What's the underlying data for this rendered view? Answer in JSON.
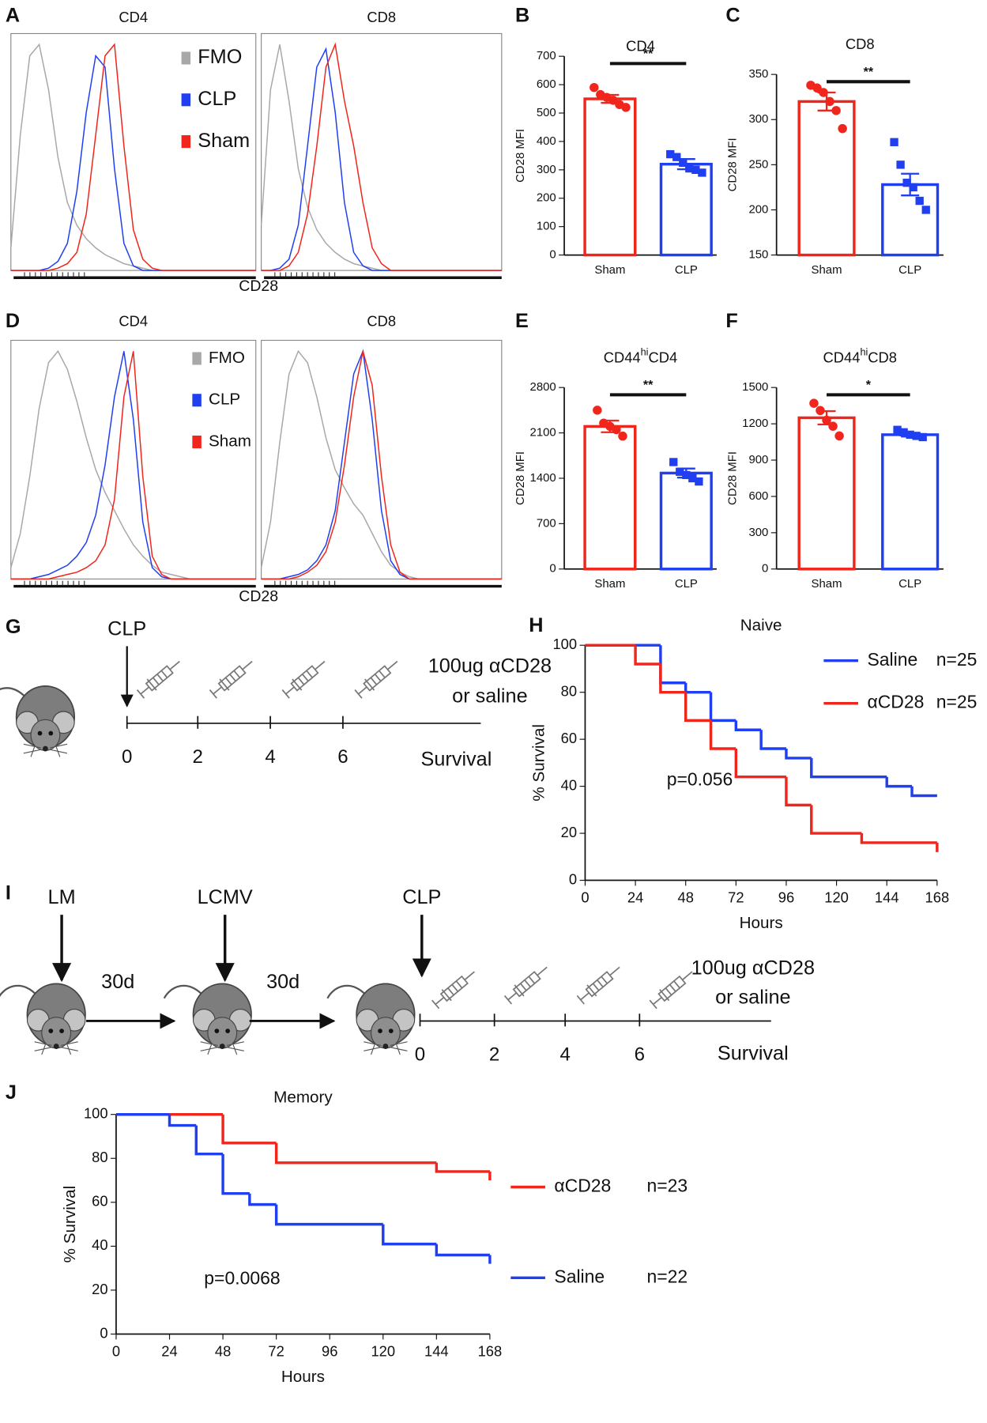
{
  "chart_data": [
    {
      "type": "density",
      "panel": "A",
      "xlabel": "CD28",
      "series": [
        {
          "name": "FMO",
          "color": "#a8a8a8"
        },
        {
          "name": "CLP",
          "color": "#1f3ff0"
        },
        {
          "name": "Sham",
          "color": "#f0251c"
        }
      ],
      "plots": [
        {
          "title": "CD4",
          "values": [
            [
              10,
              60,
              95,
              100,
              80,
              50,
              30,
              20,
              14,
              10,
              7,
              5,
              3,
              2,
              1,
              0,
              0,
              0,
              0,
              0,
              0,
              0,
              0,
              0,
              0,
              0,
              0
            ],
            [
              0,
              0,
              0,
              0,
              1,
              4,
              12,
              35,
              70,
              95,
              90,
              45,
              12,
              2,
              0,
              0,
              0,
              0,
              0,
              0,
              0,
              0,
              0,
              0,
              0,
              0,
              0
            ],
            [
              0,
              0,
              0,
              0,
              0,
              1,
              3,
              8,
              25,
              60,
              95,
              100,
              55,
              18,
              5,
              1,
              0,
              0,
              0,
              0,
              0,
              0,
              0,
              0,
              0,
              0,
              0
            ]
          ]
        },
        {
          "title": "CD8",
          "values": [
            [
              20,
              80,
              100,
              75,
              45,
              28,
              18,
              12,
              8,
              5,
              3,
              2,
              1,
              0,
              0,
              0,
              0,
              0,
              0,
              0,
              0,
              0,
              0,
              0,
              0,
              0,
              0
            ],
            [
              0,
              0,
              1,
              5,
              20,
              55,
              90,
              98,
              70,
              30,
              8,
              2,
              0,
              0,
              0,
              0,
              0,
              0,
              0,
              0,
              0,
              0,
              0,
              0,
              0,
              0,
              0
            ],
            [
              0,
              0,
              0,
              2,
              8,
              25,
              55,
              90,
              100,
              75,
              55,
              30,
              10,
              3,
              0,
              0,
              0,
              0,
              0,
              0,
              0,
              0,
              0,
              0,
              0,
              0,
              0
            ]
          ]
        }
      ]
    },
    {
      "type": "bar",
      "panel": "B",
      "title": "CD4",
      "ylabel": "CD28 MFI",
      "categories": [
        "Sham",
        "CLP"
      ],
      "values": [
        550,
        320
      ],
      "errors": [
        14,
        18
      ],
      "points": [
        [
          590,
          565,
          555,
          545,
          530,
          520
        ],
        [
          355,
          345,
          325,
          305,
          300,
          290
        ]
      ],
      "colors": [
        "#f0251c",
        "#1f3ff0"
      ],
      "markers": [
        "circle",
        "square"
      ],
      "ylim": [
        0,
        700
      ],
      "yticks": [
        0,
        100,
        200,
        300,
        400,
        500,
        600,
        700
      ],
      "significance": "**"
    },
    {
      "type": "bar",
      "panel": "C",
      "title": "CD8",
      "ylabel": "CD28 MFI",
      "categories": [
        "Sham",
        "CLP"
      ],
      "values": [
        320,
        228
      ],
      "errors": [
        10,
        12
      ],
      "points": [
        [
          338,
          335,
          330,
          320,
          310,
          290
        ],
        [
          275,
          250,
          230,
          225,
          210,
          200
        ]
      ],
      "colors": [
        "#f0251c",
        "#1f3ff0"
      ],
      "markers": [
        "circle",
        "square"
      ],
      "ylim": [
        150,
        350
      ],
      "yticks": [
        150,
        200,
        250,
        300,
        350
      ],
      "significance": "**"
    },
    {
      "type": "density",
      "panel": "D",
      "xlabel": "CD28",
      "series": [
        {
          "name": "FMO",
          "color": "#a8a8a8"
        },
        {
          "name": "CLP",
          "color": "#1f3ff0"
        },
        {
          "name": "Sham",
          "color": "#f0251c"
        }
      ],
      "plots": [
        {
          "title": "CD4",
          "values": [
            [
              5,
              20,
              45,
              75,
              95,
              100,
              92,
              78,
              62,
              48,
              38,
              30,
              22,
              15,
              10,
              6,
              3,
              2,
              1,
              0,
              0,
              0,
              0,
              0,
              0,
              0,
              0
            ],
            [
              0,
              0,
              0,
              1,
              2,
              4,
              6,
              10,
              16,
              28,
              50,
              80,
              100,
              70,
              25,
              5,
              1,
              0,
              0,
              0,
              0,
              0,
              0,
              0,
              0,
              0,
              0
            ],
            [
              0,
              0,
              0,
              0,
              0,
              1,
              2,
              3,
              5,
              8,
              15,
              35,
              80,
              100,
              45,
              10,
              2,
              0,
              0,
              0,
              0,
              0,
              0,
              0,
              0,
              0,
              0
            ]
          ]
        },
        {
          "title": "CD8",
          "values": [
            [
              5,
              25,
              60,
              90,
              100,
              95,
              80,
              62,
              48,
              40,
              33,
              28,
              20,
              12,
              6,
              3,
              1,
              0,
              0,
              0,
              0,
              0,
              0,
              0,
              0,
              0,
              0
            ],
            [
              0,
              0,
              0,
              1,
              2,
              4,
              8,
              15,
              30,
              60,
              90,
              100,
              70,
              30,
              8,
              2,
              0,
              0,
              0,
              0,
              0,
              0,
              0,
              0,
              0,
              0,
              0
            ],
            [
              0,
              0,
              0,
              0,
              1,
              3,
              6,
              12,
              25,
              50,
              80,
              100,
              85,
              45,
              15,
              3,
              0,
              0,
              0,
              0,
              0,
              0,
              0,
              0,
              0,
              0,
              0
            ]
          ]
        }
      ]
    },
    {
      "type": "bar",
      "panel": "E",
      "title_parts": [
        "CD44",
        "hi",
        "CD4"
      ],
      "ylabel": "CD28 MFI",
      "categories": [
        "Sham",
        "CLP"
      ],
      "values": [
        2200,
        1480
      ],
      "errors": [
        90,
        70
      ],
      "points": [
        [
          2450,
          2250,
          2200,
          2150,
          2050
        ],
        [
          1650,
          1500,
          1450,
          1400,
          1350
        ]
      ],
      "colors": [
        "#f0251c",
        "#1f3ff0"
      ],
      "markers": [
        "circle",
        "square"
      ],
      "ylim": [
        0,
        2800
      ],
      "yticks": [
        0,
        700,
        1400,
        2100,
        2800
      ],
      "significance": "**"
    },
    {
      "type": "bar",
      "panel": "F",
      "title_parts": [
        "CD44",
        "hi",
        "CD8"
      ],
      "ylabel": "CD28 MFI",
      "categories": [
        "Sham",
        "CLP"
      ],
      "values": [
        1250,
        1110
      ],
      "errors": [
        55,
        15
      ],
      "points": [
        [
          1370,
          1310,
          1230,
          1180,
          1100
        ],
        [
          1150,
          1130,
          1110,
          1100,
          1090
        ]
      ],
      "colors": [
        "#f0251c",
        "#1f3ff0"
      ],
      "markers": [
        "circle",
        "square"
      ],
      "ylim": [
        0,
        1500
      ],
      "yticks": [
        0,
        300,
        600,
        900,
        1200,
        1500
      ],
      "significance": "*"
    },
    {
      "type": "survival",
      "panel": "H",
      "title": "Naive",
      "xlabel": "Hours",
      "ylabel": "% Survival",
      "xlim": [
        0,
        168
      ],
      "xticks": [
        0,
        24,
        48,
        72,
        96,
        120,
        144,
        168
      ],
      "ylim": [
        0,
        100
      ],
      "yticks": [
        0,
        20,
        40,
        60,
        80,
        100
      ],
      "series": [
        {
          "name": "Saline",
          "n": "n=25",
          "color": "#1f3ff0",
          "x": [
            0,
            36,
            48,
            60,
            72,
            84,
            96,
            108,
            144,
            156,
            168
          ],
          "values": [
            100,
            84,
            80,
            68,
            64,
            56,
            52,
            44,
            40,
            36,
            36
          ]
        },
        {
          "name": "αCD28",
          "n": "n=25",
          "color": "#f0251c",
          "x": [
            0,
            24,
            36,
            48,
            60,
            72,
            96,
            108,
            132,
            168
          ],
          "values": [
            100,
            92,
            80,
            68,
            56,
            44,
            32,
            20,
            16,
            12
          ]
        }
      ],
      "annotation": "p=0.056"
    },
    {
      "type": "survival",
      "panel": "J",
      "title": "Memory",
      "xlabel": "Hours",
      "ylabel": "% Survival",
      "xlim": [
        0,
        168
      ],
      "xticks": [
        0,
        24,
        48,
        72,
        96,
        120,
        144,
        168
      ],
      "ylim": [
        0,
        100
      ],
      "yticks": [
        0,
        20,
        40,
        60,
        80,
        100
      ],
      "series": [
        {
          "name": "αCD28",
          "n": "n=23",
          "color": "#f0251c",
          "x": [
            0,
            48,
            72,
            144,
            168
          ],
          "values": [
            100,
            87,
            78,
            74,
            70
          ]
        },
        {
          "name": "Saline",
          "n": "n=22",
          "color": "#1f3ff0",
          "x": [
            0,
            24,
            36,
            48,
            60,
            72,
            120,
            144,
            168
          ],
          "values": [
            100,
            95,
            82,
            64,
            59,
            50,
            41,
            36,
            32
          ]
        }
      ],
      "annotation": "p=0.0068"
    }
  ],
  "diagrams": [
    {
      "panel": "G",
      "events": [
        "CLP"
      ],
      "timeline_ticks": [
        0,
        2,
        4,
        6
      ],
      "end_label": "Survival",
      "treatment": [
        "100ug αCD28",
        "or saline"
      ]
    },
    {
      "panel": "I",
      "events": [
        "LM",
        "LCMV",
        "CLP"
      ],
      "intervals": [
        "30d",
        "30d"
      ],
      "timeline_ticks": [
        0,
        2,
        4,
        6
      ],
      "end_label": "Survival",
      "treatment": [
        "100ug αCD28",
        "or saline"
      ]
    }
  ]
}
